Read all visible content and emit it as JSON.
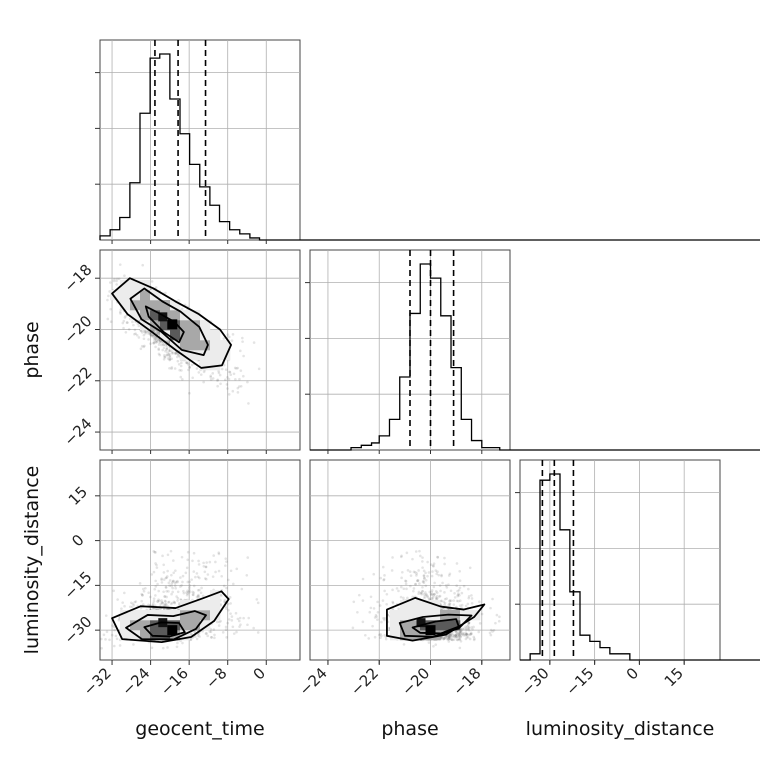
{
  "chart_data": {
    "type": "corner",
    "parameters": [
      "geocent_time",
      "phase",
      "luminosity_distance"
    ],
    "axis_labels": {
      "x": [
        "geocent_time",
        "phase",
        "luminosity_distance"
      ],
      "y": [
        "",
        "phase",
        "luminosity_distance"
      ]
    },
    "ranges": {
      "geocent_time": [
        -34.5,
        7
      ],
      "phase": [
        -24.7,
        -16.9
      ],
      "luminosity_distance": [
        -40,
        27
      ]
    },
    "ticks": {
      "geocent_time": {
        "values": [
          -32,
          -24,
          -16,
          -8,
          0
        ],
        "labels": [
          "−32",
          "−24",
          "−16",
          "−8",
          "0"
        ]
      },
      "phase": {
        "values": [
          -24,
          -22,
          -20,
          -18
        ],
        "labels": [
          "−24",
          "−22",
          "−20",
          "−18"
        ]
      },
      "luminosity_distance": {
        "values": [
          -30,
          -15,
          0,
          15
        ],
        "labels": [
          "−30",
          "−15",
          "0",
          "15"
        ]
      }
    },
    "grid": true,
    "colors": {
      "lines": "#000000",
      "points": "#555555",
      "density_dark": "#000000",
      "density_light": "#ffffff"
    },
    "histograms": {
      "geocent_time": {
        "edges": [
          -34.5,
          -32.4,
          -30.4,
          -28.3,
          -26.2,
          -24.1,
          -22.1,
          -20.0,
          -17.9,
          -15.9,
          -13.8,
          -11.7,
          -9.7,
          -7.6,
          -5.5,
          -3.4,
          -1.4,
          0.7,
          2.8,
          4.8,
          6.9
        ],
        "counts": [
          2,
          5,
          11,
          28,
          62,
          89,
          91,
          69,
          52,
          37,
          26,
          17,
          9,
          5,
          3,
          1,
          0,
          0,
          0,
          0
        ],
        "quantiles": [
          -23.1,
          -18.3,
          -12.6
        ]
      },
      "phase": {
        "edges": [
          -24.7,
          -24.3,
          -23.9,
          -23.5,
          -23.1,
          -22.7,
          -22.3,
          -22.0,
          -21.6,
          -21.2,
          -20.8,
          -20.4,
          -20.0,
          -19.6,
          -19.2,
          -18.8,
          -18.4,
          -18.0,
          -17.6,
          -17.3,
          -16.9
        ],
        "counts": [
          0,
          0,
          0,
          0,
          1,
          2,
          3,
          6,
          13,
          31,
          58,
          79,
          73,
          57,
          35,
          13,
          4,
          1,
          1,
          0
        ],
        "quantiles": [
          -20.8,
          -20.0,
          -19.1
        ]
      },
      "luminosity_distance": {
        "edges": [
          -40.0,
          -36.6,
          -33.3,
          -30.0,
          -26.6,
          -23.3,
          -19.9,
          -16.6,
          -13.2,
          -9.9,
          -6.5,
          -3.2,
          0.1,
          3.5,
          6.8,
          10.2,
          13.5,
          16.9,
          20.2,
          23.6,
          26.9
        ],
        "counts": [
          0,
          1,
          29,
          30,
          21,
          11,
          4,
          3,
          2,
          1,
          1,
          0,
          0,
          0,
          0,
          0,
          0,
          0,
          0,
          0
        ],
        "quantiles": [
          -32.5,
          -28.5,
          -22.1
        ]
      }
    },
    "pairs": [
      {
        "x": "geocent_time",
        "y": "phase",
        "correlation": -0.75,
        "peak": [
          -19.5,
          -19.8
        ],
        "contours": [
          [
            [
              -25.0,
              -19.1
            ],
            [
              -21.9,
              -19.4
            ],
            [
              -19.1,
              -19.7
            ],
            [
              -17.1,
              -20.1
            ],
            [
              -18.1,
              -20.5
            ],
            [
              -21.3,
              -20.1
            ],
            [
              -24.4,
              -19.5
            ]
          ],
          [
            [
              -28.2,
              -18.8
            ],
            [
              -25.3,
              -18.4
            ],
            [
              -21.6,
              -18.9
            ],
            [
              -17.8,
              -19.3
            ],
            [
              -13.9,
              -19.9
            ],
            [
              -12.1,
              -20.6
            ],
            [
              -13.0,
              -21.0
            ],
            [
              -17.5,
              -20.8
            ],
            [
              -21.7,
              -20.1
            ],
            [
              -25.9,
              -19.6
            ]
          ],
          [
            [
              -32.0,
              -18.6
            ],
            [
              -28.3,
              -18.0
            ],
            [
              -23.4,
              -18.4
            ],
            [
              -18.9,
              -18.9
            ],
            [
              -14.0,
              -19.4
            ],
            [
              -9.6,
              -20.0
            ],
            [
              -7.3,
              -20.6
            ],
            [
              -9.2,
              -21.4
            ],
            [
              -13.5,
              -21.5
            ],
            [
              -18.8,
              -20.8
            ],
            [
              -23.7,
              -20.1
            ],
            [
              -28.8,
              -19.4
            ]
          ]
        ]
      },
      {
        "x": "geocent_time",
        "y": "luminosity_distance",
        "correlation": 0.35,
        "peak": [
          -19.5,
          -30.0
        ],
        "contours": [
          [
            [
              -25.3,
              -29.0
            ],
            [
              -21.8,
              -27.4
            ],
            [
              -18.1,
              -27.6
            ],
            [
              -16.9,
              -30.7
            ],
            [
              -20.0,
              -32.1
            ],
            [
              -23.6,
              -31.9
            ]
          ],
          [
            [
              -29.1,
              -29.2
            ],
            [
              -24.6,
              -24.9
            ],
            [
              -19.3,
              -25.3
            ],
            [
              -14.8,
              -23.6
            ],
            [
              -12.5,
              -25.0
            ],
            [
              -14.6,
              -29.6
            ],
            [
              -19.2,
              -33.1
            ],
            [
              -25.8,
              -33.0
            ]
          ],
          [
            [
              -32.0,
              -26.0
            ],
            [
              -26.1,
              -22.0
            ],
            [
              -18.8,
              -22.6
            ],
            [
              -13.1,
              -19.3
            ],
            [
              -9.3,
              -17.0
            ],
            [
              -7.8,
              -19.6
            ],
            [
              -10.8,
              -26.9
            ],
            [
              -15.6,
              -32.3
            ],
            [
              -21.7,
              -34.0
            ],
            [
              -29.9,
              -33.0
            ]
          ]
        ]
      },
      {
        "x": "phase",
        "y": "luminosity_distance",
        "correlation": -0.15,
        "peak": [
          -20.0,
          -30.0
        ],
        "contours": [
          [
            [
              -20.7,
              -29.1
            ],
            [
              -19.8,
              -27.1
            ],
            [
              -19.0,
              -26.3
            ],
            [
              -18.9,
              -28.8
            ],
            [
              -19.6,
              -31.1
            ],
            [
              -20.4,
              -30.9
            ]
          ],
          [
            [
              -21.2,
              -27.6
            ],
            [
              -20.3,
              -25.6
            ],
            [
              -19.3,
              -24.8
            ],
            [
              -18.4,
              -25.1
            ],
            [
              -18.9,
              -29.4
            ],
            [
              -19.9,
              -32.2
            ],
            [
              -21.0,
              -31.9
            ]
          ],
          [
            [
              -21.7,
              -23.1
            ],
            [
              -20.6,
              -19.2
            ],
            [
              -19.6,
              -22.1
            ],
            [
              -18.7,
              -23.1
            ],
            [
              -17.9,
              -21.4
            ],
            [
              -18.3,
              -25.6
            ],
            [
              -19.4,
              -31.5
            ],
            [
              -20.7,
              -33.5
            ],
            [
              -21.7,
              -31.9
            ]
          ]
        ]
      }
    ]
  }
}
